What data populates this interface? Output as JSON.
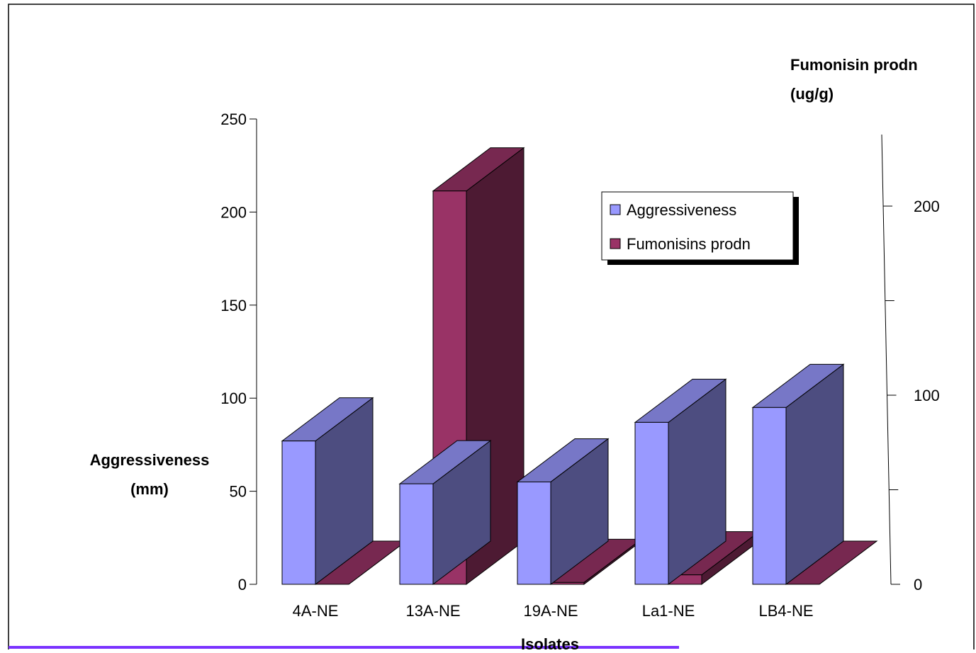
{
  "chart_data": {
    "type": "bar",
    "categories": [
      "4A-NE",
      "13A-NE",
      "19A-NE",
      "La1-NE",
      "LB4-NE"
    ],
    "series": [
      {
        "name": "Aggressiveness",
        "axis": "left",
        "values": [
          77,
          54,
          55,
          87,
          95
        ],
        "color": "#9999ff"
      },
      {
        "name": "Fumonisins prodn",
        "axis": "right",
        "values": [
          0,
          208,
          1,
          5,
          0
        ],
        "color": "#993366"
      }
    ],
    "xlabel": "Isolates",
    "ylabel_line1": "Aggressiveness",
    "ylabel_line2": "(mm)",
    "ylim": [
      0,
      250
    ],
    "yticks": [
      "0",
      "50",
      "100",
      "150",
      "200",
      "250"
    ],
    "y2label_line1": "Fumonisin prodn",
    "y2label_line2": "(ug/g)",
    "y2lim": [
      0,
      200
    ],
    "y2ticks": [
      "0",
      "100",
      "200"
    ],
    "grid": false,
    "legend_position": "top-right"
  }
}
